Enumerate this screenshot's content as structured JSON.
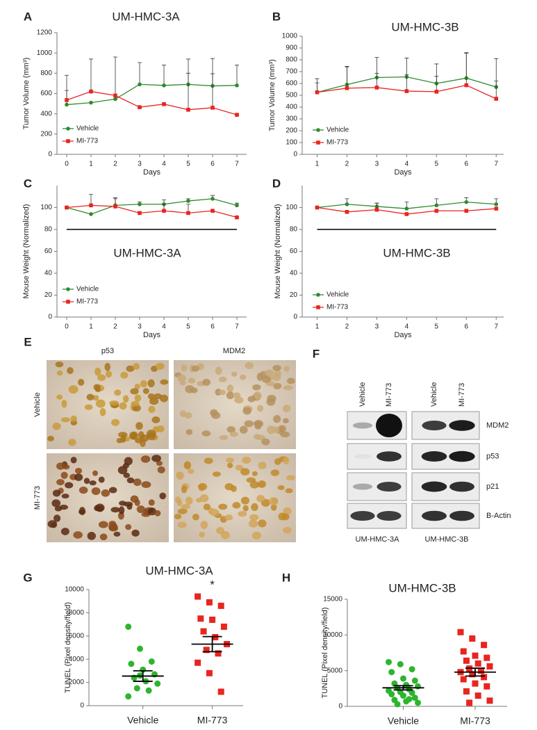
{
  "panel_labels": [
    "A",
    "B",
    "C",
    "D",
    "E",
    "F",
    "G",
    "H"
  ],
  "chart_data": [
    {
      "type": "line",
      "title": "UM-HMC-3A",
      "x_label": "Days",
      "y_label": "Tumor Volume (mm³)",
      "x": [
        0,
        1,
        2,
        3,
        4,
        5,
        6,
        7
      ],
      "xlim": [
        -0.4,
        7.4
      ],
      "xticks": [
        0,
        1,
        2,
        3,
        4,
        5,
        6,
        7
      ],
      "ylim": [
        0,
        1200
      ],
      "yticks": [
        0,
        200,
        400,
        600,
        800,
        1000,
        1200
      ],
      "legend": "lower left",
      "series": [
        {
          "name": "Vehicle",
          "color": "#2e8b2e",
          "marker": "circle",
          "values": [
            490,
            510,
            545,
            690,
            680,
            690,
            675,
            680
          ],
          "errors": [
            140,
            0,
            0,
            215,
            200,
            110,
            120,
            200
          ]
        },
        {
          "name": "MI-773",
          "color": "#e8251f",
          "marker": "square",
          "values": [
            535,
            620,
            580,
            465,
            495,
            440,
            460,
            390
          ],
          "errors": [
            245,
            320,
            380,
            0,
            0,
            500,
            485,
            0
          ]
        }
      ]
    },
    {
      "type": "line",
      "title": "UM-HMC-3B",
      "x_label": "Days",
      "y_label": "Tumor Volume (mm³)",
      "x": [
        1,
        2,
        3,
        4,
        5,
        6,
        7
      ],
      "xlim": [
        0.5,
        7.25
      ],
      "xticks": [
        1,
        2,
        3,
        4,
        5,
        6,
        7
      ],
      "ylim": [
        0,
        1000
      ],
      "yticks": [
        0,
        100,
        200,
        300,
        400,
        500,
        600,
        700,
        800,
        900,
        1000
      ],
      "legend": "lower left",
      "series": [
        {
          "name": "Vehicle",
          "color": "#2e8b2e",
          "marker": "circle",
          "values": [
            525,
            590,
            650,
            655,
            600,
            645,
            570
          ],
          "errors": [
            115,
            155,
            170,
            160,
            165,
            215,
            240
          ]
        },
        {
          "name": "MI-773",
          "color": "#e8251f",
          "marker": "square",
          "values": [
            525,
            560,
            565,
            535,
            530,
            585,
            470
          ],
          "errors": [
            80,
            180,
            120,
            140,
            130,
            270,
            150
          ]
        }
      ]
    },
    {
      "type": "line",
      "title": "UM-HMC-3A",
      "x_label": "Days",
      "y_label": "Mouse Weight (Normalized)",
      "x": [
        0,
        1,
        2,
        3,
        4,
        5,
        6,
        7
      ],
      "xlim": [
        -0.4,
        7.4
      ],
      "xticks": [
        0,
        1,
        2,
        3,
        4,
        5,
        6,
        7
      ],
      "ylim": [
        0,
        120
      ],
      "yticks": [
        0,
        20,
        40,
        60,
        80,
        100
      ],
      "legend": "lower left",
      "reference_line": 80,
      "series": [
        {
          "name": "Vehicle",
          "color": "#2e8b2e",
          "marker": "circle",
          "values": [
            100,
            94,
            102,
            103,
            103,
            106,
            108,
            102
          ],
          "errors": [
            0,
            0,
            6,
            2,
            4,
            2,
            3,
            2
          ]
        },
        {
          "name": "MI-773",
          "color": "#e8251f",
          "marker": "square",
          "values": [
            100,
            102,
            101,
            95,
            97,
            95,
            97,
            91
          ],
          "errors": [
            0,
            10,
            8,
            0,
            6,
            8,
            0,
            0
          ]
        }
      ]
    },
    {
      "type": "line",
      "title": "UM-HMC-3B",
      "x_label": "Days",
      "y_label": "Mouse Weight (Normalized)",
      "x": [
        1,
        2,
        3,
        4,
        5,
        6,
        7
      ],
      "xlim": [
        0.5,
        7.25
      ],
      "xticks": [
        1,
        2,
        3,
        4,
        5,
        6,
        7
      ],
      "ylim": [
        0,
        120
      ],
      "yticks": [
        0,
        20,
        40,
        60,
        80,
        100
      ],
      "legend": "lower left",
      "reference_line": 80,
      "series": [
        {
          "name": "Vehicle",
          "color": "#2e8b2e",
          "marker": "circle",
          "values": [
            100,
            103,
            101,
            99,
            102,
            105,
            103
          ],
          "errors": [
            0,
            5,
            3,
            6,
            6,
            4,
            5
          ]
        },
        {
          "name": "MI-773",
          "color": "#e8251f",
          "marker": "square",
          "values": [
            100,
            96,
            98,
            94,
            97,
            97,
            99
          ],
          "errors": [
            0,
            0,
            6,
            0,
            0,
            0,
            0
          ]
        }
      ]
    },
    {
      "type": "dot",
      "title": "UM-HMC-3A",
      "y_label": "TUNEL (Pixel density/field)",
      "annotation": "*",
      "categories": [
        "Vehicle",
        "MI-773"
      ],
      "ylim": [
        0,
        10000
      ],
      "yticks": [
        0,
        2000,
        4000,
        6000,
        8000,
        10000
      ],
      "groups": [
        {
          "color": "#2db52d",
          "marker": "circle",
          "values": [
            6800,
            4900,
            3800,
            3600,
            3100,
            2700,
            2400,
            2100,
            1900,
            1500,
            1300,
            800,
            2600
          ],
          "mean": 2550,
          "sem": 450
        },
        {
          "color": "#e8251f",
          "marker": "square",
          "values": [
            9400,
            8900,
            8600,
            7500,
            7400,
            6800,
            6400,
            5900,
            5300,
            4800,
            4500,
            3700,
            2800,
            1200
          ],
          "mean": 5300,
          "sem": 650
        }
      ]
    },
    {
      "type": "dot",
      "title": "UM-HMC-3B",
      "y_label": "TUNEL (Pixel density/field)",
      "categories": [
        "Vehicle",
        "MI-773"
      ],
      "ylim": [
        0,
        15000
      ],
      "yticks": [
        0,
        5000,
        10000,
        15000
      ],
      "groups": [
        {
          "color": "#2db52d",
          "marker": "circle",
          "values": [
            6200,
            5900,
            5200,
            4800,
            3900,
            3600,
            3200,
            3000,
            2800,
            2600,
            2400,
            2200,
            2000,
            1900,
            1700,
            1500,
            1200,
            900,
            700,
            500,
            300,
            1000
          ],
          "mean": 2600,
          "sem": 300
        },
        {
          "color": "#e8251f",
          "marker": "square",
          "values": [
            10400,
            9500,
            8600,
            7700,
            7100,
            6800,
            6400,
            6000,
            5600,
            5300,
            5000,
            4800,
            4500,
            4100,
            3800,
            3200,
            2800,
            2100,
            1500,
            800,
            500
          ],
          "mean": 4800,
          "sem": 550
        }
      ]
    }
  ],
  "ihc": {
    "columns": [
      "p53",
      "MDM2"
    ],
    "rows": [
      "Vehicle",
      "MI-773"
    ]
  },
  "blot": {
    "lanes": [
      "Vehicle",
      "MI-773",
      "Vehicle",
      "MI-773"
    ],
    "proteins": [
      "MDM2",
      "p53",
      "p21",
      "B-Actin"
    ],
    "cell_lines": [
      "UM-HMC-3A",
      "UM-HMC-3B"
    ]
  }
}
